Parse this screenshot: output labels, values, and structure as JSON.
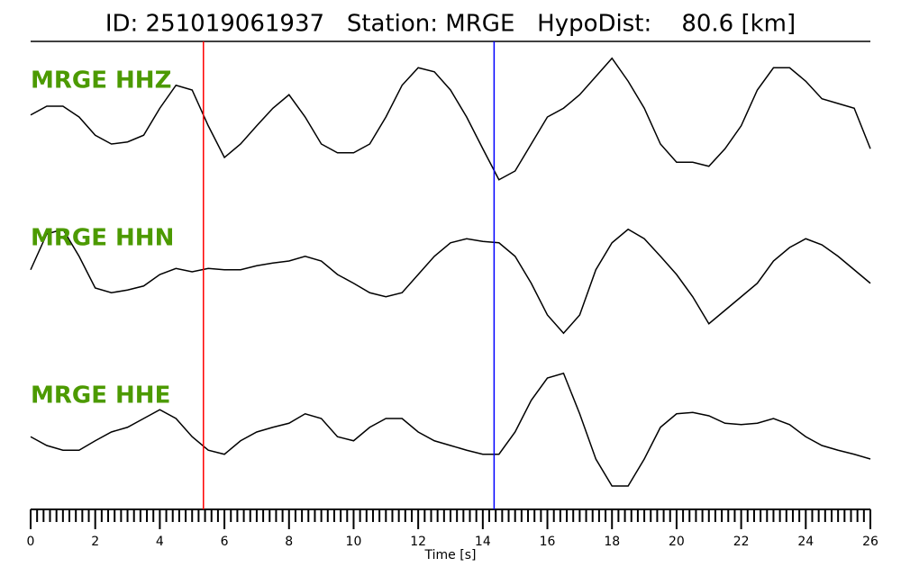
{
  "chart_data": {
    "type": "line",
    "title": "ID: 251019061937   Station: MRGE   HypoDist:    80.6 [km]",
    "xlabel": "Time [s]",
    "xlim": [
      0,
      26
    ],
    "xticks": [
      0,
      2,
      4,
      6,
      8,
      10,
      12,
      14,
      16,
      18,
      20,
      22,
      24,
      26
    ],
    "xminor_ticks": [
      0.2,
      0.4,
      0.6,
      0.8,
      1,
      1.2,
      1.4,
      1.6,
      1.8,
      2.2,
      2.4,
      2.6,
      2.8,
      3,
      3.2,
      3.4,
      3.6,
      3.8,
      4.2,
      4.4,
      4.6,
      4.8,
      5,
      5.2,
      5.4,
      5.6,
      5.8,
      6.2,
      6.4,
      6.6,
      6.8,
      7,
      7.2,
      7.4,
      7.6,
      7.8,
      8.2,
      8.4,
      8.6,
      8.8,
      9,
      9.2,
      9.4,
      9.6,
      9.8,
      10.2,
      10.4,
      10.6,
      10.8,
      11,
      11.2,
      11.4,
      11.6,
      11.8,
      12.2,
      12.4,
      12.6,
      12.8,
      13,
      13.2,
      13.4,
      13.6,
      13.8,
      14.2,
      14.4,
      14.6,
      14.8,
      15,
      15.2,
      15.4,
      15.6,
      15.8,
      16.2,
      16.4,
      16.6,
      16.8,
      17,
      17.2,
      17.4,
      17.6,
      17.8,
      18.2,
      18.4,
      18.6,
      18.8,
      19,
      19.2,
      19.4,
      19.6,
      19.8,
      20.2,
      20.4,
      20.6,
      20.8,
      21,
      21.2,
      21.4,
      21.6,
      21.8,
      22.2,
      22.4,
      22.6,
      22.8,
      23,
      23.2,
      23.4,
      23.6,
      23.8,
      24.2,
      24.4,
      24.6,
      24.8,
      25,
      25.2,
      25.4,
      25.6,
      25.8
    ],
    "ylim": [
      -1,
      1
    ],
    "label_color": "#4c9a00",
    "x": [
      0,
      0.5,
      1,
      1.5,
      2,
      2.5,
      3,
      3.5,
      4,
      4.5,
      5,
      5.5,
      6,
      6.5,
      7,
      7.5,
      8,
      8.5,
      9,
      9.5,
      10,
      10.5,
      11,
      11.5,
      12,
      12.5,
      13,
      13.5,
      14,
      14.5,
      15,
      15.5,
      16,
      16.5,
      17,
      17.5,
      18,
      18.5,
      19,
      19.5,
      20,
      20.5,
      21,
      21.5,
      22,
      22.5,
      23,
      23.5,
      24,
      24.5,
      25,
      25.5,
      26
    ],
    "series": [
      {
        "name": "MRGE HHZ",
        "color": "#000000",
        "values": [
          0.03,
          0.16,
          0.16,
          0,
          -0.27,
          -0.4,
          -0.37,
          -0.27,
          0.13,
          0.47,
          0.4,
          -0.13,
          -0.6,
          -0.4,
          -0.13,
          0.13,
          0.33,
          0,
          -0.4,
          -0.53,
          -0.53,
          -0.4,
          0,
          0.47,
          0.73,
          0.67,
          0.4,
          0,
          -0.47,
          -0.93,
          -0.8,
          -0.4,
          0,
          0.13,
          0.33,
          0.6,
          0.87,
          0.53,
          0.13,
          -0.4,
          -0.67,
          -0.67,
          -0.73,
          -0.47,
          -0.13,
          0.4,
          0.73,
          0.73,
          0.53,
          0.27,
          0.2,
          0.13,
          -0.47
        ]
      },
      {
        "name": "MRGE HHN",
        "color": "#000000",
        "values": [
          0.07,
          0.6,
          0.67,
          0.27,
          -0.2,
          -0.27,
          -0.23,
          -0.17,
          0,
          0.09,
          0.04,
          0.09,
          0.07,
          0.07,
          0.13,
          0.17,
          0.2,
          0.27,
          0.2,
          0,
          -0.13,
          -0.27,
          -0.33,
          -0.27,
          0,
          0.27,
          0.47,
          0.53,
          0.49,
          0.47,
          0.27,
          -0.13,
          -0.6,
          -0.87,
          -0.6,
          0.07,
          0.47,
          0.67,
          0.53,
          0.27,
          0,
          -0.33,
          -0.73,
          -0.53,
          -0.33,
          -0.13,
          0.2,
          0.4,
          0.53,
          0.44,
          0.27,
          0.07,
          -0.13
        ]
      },
      {
        "name": "MRGE HHE",
        "color": "#000000",
        "values": [
          -0.07,
          -0.2,
          -0.27,
          -0.27,
          -0.13,
          0,
          0.07,
          0.2,
          0.33,
          0.2,
          -0.07,
          -0.27,
          -0.33,
          -0.13,
          0,
          0.07,
          0.13,
          0.27,
          0.2,
          -0.07,
          -0.13,
          0.07,
          0.2,
          0.2,
          0,
          -0.13,
          -0.2,
          -0.27,
          -0.33,
          -0.33,
          0,
          0.47,
          0.8,
          0.87,
          0.27,
          -0.4,
          -0.8,
          -0.8,
          -0.4,
          0.07,
          0.27,
          0.29,
          0.24,
          0.13,
          0.11,
          0.13,
          0.2,
          0.11,
          -0.07,
          -0.2,
          -0.27,
          -0.33,
          -0.4
        ]
      }
    ],
    "picks": [
      {
        "time": 5.35,
        "color": "#ff0000"
      },
      {
        "time": 14.35,
        "color": "#0000ff"
      }
    ]
  }
}
